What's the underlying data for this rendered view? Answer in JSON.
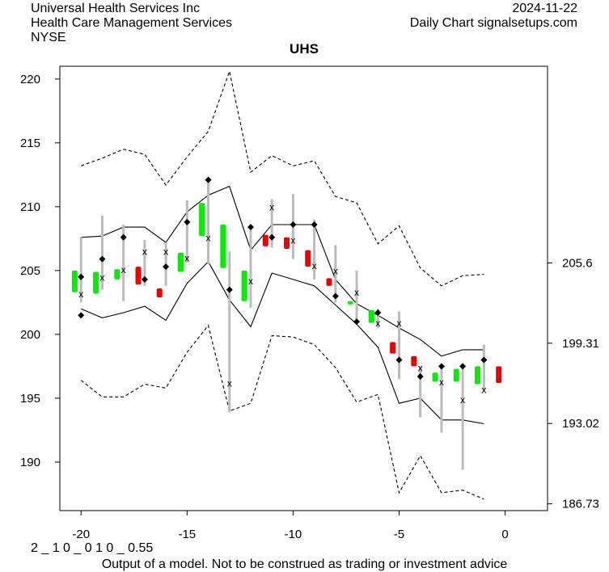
{
  "header": {
    "company": "Universal Health Services Inc",
    "sector": "Health Care Management Services",
    "exchange": "NYSE",
    "date": "2024-11-22",
    "source": "Daily Chart signalsetups.com"
  },
  "footer": {
    "code": "2 _ 1 0 _ 0 1 0 _ 0.55",
    "disclaimer": "Output of a model. Not to be construed as trading or investment advice"
  },
  "colors": {
    "up": "#00ee00",
    "down": "#ee0000",
    "range": "#bbbbbb",
    "line": "#000000"
  },
  "chart_data": {
    "type": "line",
    "title": "UHS",
    "xlabel": "",
    "ylabel": "",
    "xlim": [
      -21,
      2
    ],
    "ylim": [
      186.2,
      221.0
    ],
    "x_ticks": [
      -20,
      -15,
      -10,
      -5,
      0
    ],
    "y_ticks_left": [
      190,
      195,
      200,
      205,
      210,
      215,
      220
    ],
    "y_ticks_right": [
      "205.6",
      "199.31",
      "193.02",
      "186.73"
    ],
    "grid": false,
    "candles": {
      "x": [
        -20.3,
        -19.3,
        -18.3,
        -17.3,
        -16.3,
        -15.3,
        -14.3,
        -13.3,
        -12.3,
        -11.3,
        -10.3,
        -9.3,
        -8.3,
        -7.3,
        -6.3,
        -5.3,
        -4.3,
        -3.3,
        -2.3,
        -1.3,
        -0.3
      ],
      "open": [
        203.3,
        203.2,
        204.3,
        203.9,
        202.9,
        204.9,
        207.7,
        208.6,
        202.6,
        206.9,
        207.6,
        206.6,
        204.4,
        202.4,
        200.9,
        199.4,
        198.3,
        196.3,
        196.3,
        196.1,
        197.5
      ],
      "close": [
        205.0,
        204.9,
        205.1,
        205.3,
        203.6,
        206.4,
        210.3,
        205.2,
        205.0,
        207.8,
        206.7,
        205.3,
        203.8,
        202.6,
        201.9,
        198.5,
        197.5,
        197.0,
        197.3,
        197.5,
        196.2
      ],
      "direction": [
        "up",
        "up",
        "up",
        "down",
        "down",
        "up",
        "up",
        "up",
        "up",
        "down",
        "down",
        "down",
        "down",
        "up",
        "up",
        "down",
        "down",
        "up",
        "up",
        "up",
        "down"
      ]
    },
    "markers": {
      "x": [
        -20,
        -19,
        -18,
        -17,
        -16,
        -15,
        -14,
        -13,
        -12,
        -11,
        -10,
        -9,
        -8,
        -7,
        -6,
        -5,
        -4,
        -3,
        -2,
        -1
      ],
      "high": [
        207.6,
        209.3,
        208.6,
        207.4,
        207.2,
        210.5,
        212.1,
        206.5,
        208.6,
        210.6,
        211.0,
        209.0,
        207.0,
        205.0,
        202.0,
        201.8,
        197.5,
        197.6,
        197.5,
        199.2
      ],
      "low": [
        202.5,
        203.5,
        202.6,
        203.8,
        203.8,
        205.6,
        205.5,
        193.9,
        202.1,
        206.8,
        205.9,
        204.3,
        202.5,
        201.2,
        200.5,
        196.5,
        193.5,
        192.3,
        189.4,
        195.6
      ],
      "diamond_upper": [
        204.5,
        205.9,
        207.6,
        204.3,
        205.3,
        208.8,
        212.1,
        203.5,
        208.4,
        207.6,
        208.6,
        208.6,
        203.0,
        201.0,
        201.7,
        198.0,
        196.7,
        197.5,
        197.5,
        198.0
      ],
      "diamond_lower": [
        201.5,
        205.9,
        207.6,
        204.3,
        205.3,
        208.8,
        212.1,
        203.5,
        208.4,
        207.6,
        208.6,
        208.6,
        203.0,
        201.0,
        201.7,
        198.0,
        196.7,
        197.5,
        197.5,
        198.0
      ],
      "x_mark": [
        203.2,
        204.5,
        205.1,
        206.5,
        206.5,
        206.0,
        207.6,
        196.2,
        204.2,
        210.0,
        207.4,
        205.4,
        205.0,
        203.3,
        200.9,
        200.9,
        197.4,
        196.3,
        194.9,
        195.7
      ]
    },
    "series": [
      {
        "style": "solid",
        "x": [
          -20,
          -19,
          -18,
          -17,
          -16,
          -15,
          -14,
          -13,
          -12,
          -11,
          -10,
          -9,
          -8,
          -7,
          -6,
          -5,
          -4,
          -3,
          -2,
          -1
        ],
        "values": [
          207.6,
          207.7,
          208.4,
          208.4,
          207.2,
          209.6,
          210.9,
          211.6,
          206.6,
          208.6,
          208.6,
          208.6,
          204.3,
          202.4,
          201.5,
          200.5,
          199.6,
          198.3,
          198.8,
          198.8
        ]
      },
      {
        "style": "solid",
        "x": [
          -20,
          -19,
          -18,
          -17,
          -16,
          -15,
          -14,
          -13,
          -12,
          -11,
          -10,
          -9,
          -8,
          -7,
          -6,
          -5,
          -4,
          -3,
          -2,
          -1
        ],
        "values": [
          202.0,
          201.3,
          201.7,
          202.2,
          201.1,
          204.0,
          205.7,
          202.7,
          200.6,
          204.8,
          204.3,
          203.8,
          202.3,
          200.8,
          199.0,
          194.6,
          195.0,
          193.3,
          193.3,
          193.0
        ]
      },
      {
        "style": "dashed",
        "x": [
          -20,
          -19,
          -18,
          -17,
          -16,
          -15,
          -14,
          -13,
          -12,
          -11,
          -10,
          -9,
          -8,
          -7,
          -6,
          -5,
          -4,
          -3,
          -2,
          -1
        ],
        "values": [
          213.2,
          213.8,
          214.5,
          214.1,
          211.7,
          213.9,
          215.9,
          220.6,
          212.7,
          214.0,
          213.2,
          213.6,
          210.8,
          210.3,
          207.1,
          208.5,
          205.2,
          203.8,
          204.6,
          204.7
        ]
      },
      {
        "style": "dashed",
        "x": [
          -20,
          -19,
          -18,
          -17,
          -16,
          -15,
          -14,
          -13,
          -12,
          -11,
          -10,
          -9,
          -8,
          -7,
          -6,
          -5,
          -4,
          -3,
          -2,
          -1
        ],
        "values": [
          196.4,
          195.1,
          195.1,
          196.1,
          195.8,
          198.6,
          200.7,
          194.0,
          194.6,
          199.9,
          199.8,
          199.2,
          197.4,
          194.7,
          195.3,
          187.6,
          190.5,
          187.6,
          187.8,
          187.1
        ]
      }
    ]
  }
}
